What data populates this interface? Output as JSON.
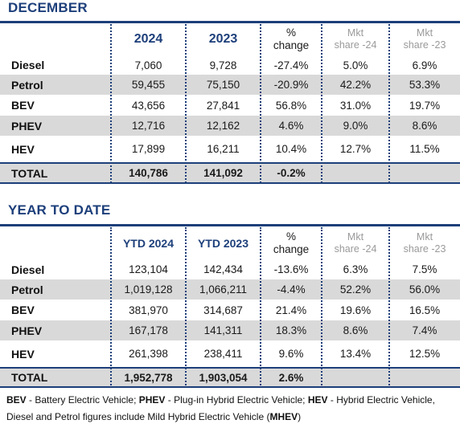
{
  "december": {
    "title": "DECEMBER",
    "headers": {
      "col1": "2024",
      "col2": "2023",
      "chg1": "%",
      "chg2": "change",
      "mkt24a": "Mkt",
      "mkt24b": "share -24",
      "mkt23a": "Mkt",
      "mkt23b": "share -23"
    },
    "rows": [
      {
        "label": "Diesel",
        "v24": "7,060",
        "v23": "9,728",
        "chg": "-27.4%",
        "m24": "5.0%",
        "m23": "6.9%"
      },
      {
        "label": "Petrol",
        "v24": "59,455",
        "v23": "75,150",
        "chg": "-20.9%",
        "m24": "42.2%",
        "m23": "53.3%"
      },
      {
        "label": "BEV",
        "v24": "43,656",
        "v23": "27,841",
        "chg": "56.8%",
        "m24": "31.0%",
        "m23": "19.7%"
      },
      {
        "label": "PHEV",
        "v24": "12,716",
        "v23": "12,162",
        "chg": "4.6%",
        "m24": "9.0%",
        "m23": "8.6%"
      },
      {
        "label": "HEV",
        "v24": "17,899",
        "v23": "16,211",
        "chg": "10.4%",
        "m24": "12.7%",
        "m23": "11.5%"
      }
    ],
    "total": {
      "label": "TOTAL",
      "v24": "140,786",
      "v23": "141,092",
      "chg": "-0.2%"
    }
  },
  "ytd": {
    "title": "YEAR TO DATE",
    "headers": {
      "col1": "YTD 2024",
      "col2": "YTD 2023",
      "chg1": "%",
      "chg2": "change",
      "mkt24a": "Mkt",
      "mkt24b": "share -24",
      "mkt23a": "Mkt",
      "mkt23b": "share -23"
    },
    "rows": [
      {
        "label": "Diesel",
        "v24": "123,104",
        "v23": "142,434",
        "chg": "-13.6%",
        "m24": "6.3%",
        "m23": "7.5%"
      },
      {
        "label": "Petrol",
        "v24": "1,019,128",
        "v23": "1,066,211",
        "chg": "-4.4%",
        "m24": "52.2%",
        "m23": "56.0%"
      },
      {
        "label": "BEV",
        "v24": "381,970",
        "v23": "314,687",
        "chg": "21.4%",
        "m24": "19.6%",
        "m23": "16.5%"
      },
      {
        "label": "PHEV",
        "v24": "167,178",
        "v23": "141,311",
        "chg": "18.3%",
        "m24": "8.6%",
        "m23": "7.4%"
      },
      {
        "label": "HEV",
        "v24": "261,398",
        "v23": "238,411",
        "chg": "9.6%",
        "m24": "13.4%",
        "m23": "12.5%"
      }
    ],
    "total": {
      "label": "TOTAL",
      "v24": "1,952,778",
      "v23": "1,903,054",
      "chg": "2.6%"
    }
  },
  "footnote": {
    "bev_abbr": "BEV",
    "bev_text": " - Battery Electric Vehicle; ",
    "phev_abbr": "PHEV",
    "phev_text": " - Plug-in Hybrid Electric Vehicle; ",
    "hev_abbr": "HEV",
    "hev_text": " - Hybrid Electric Vehicle,",
    "line2_text": "Diesel and Petrol figures include Mild Hybrid Electric Vehicle (",
    "mhev_abbr": "MHEV",
    "line2_end": ")"
  },
  "colors": {
    "navy": "#1d3f7a",
    "shade": "#d9d9d9",
    "muted": "#9a9a9a"
  }
}
